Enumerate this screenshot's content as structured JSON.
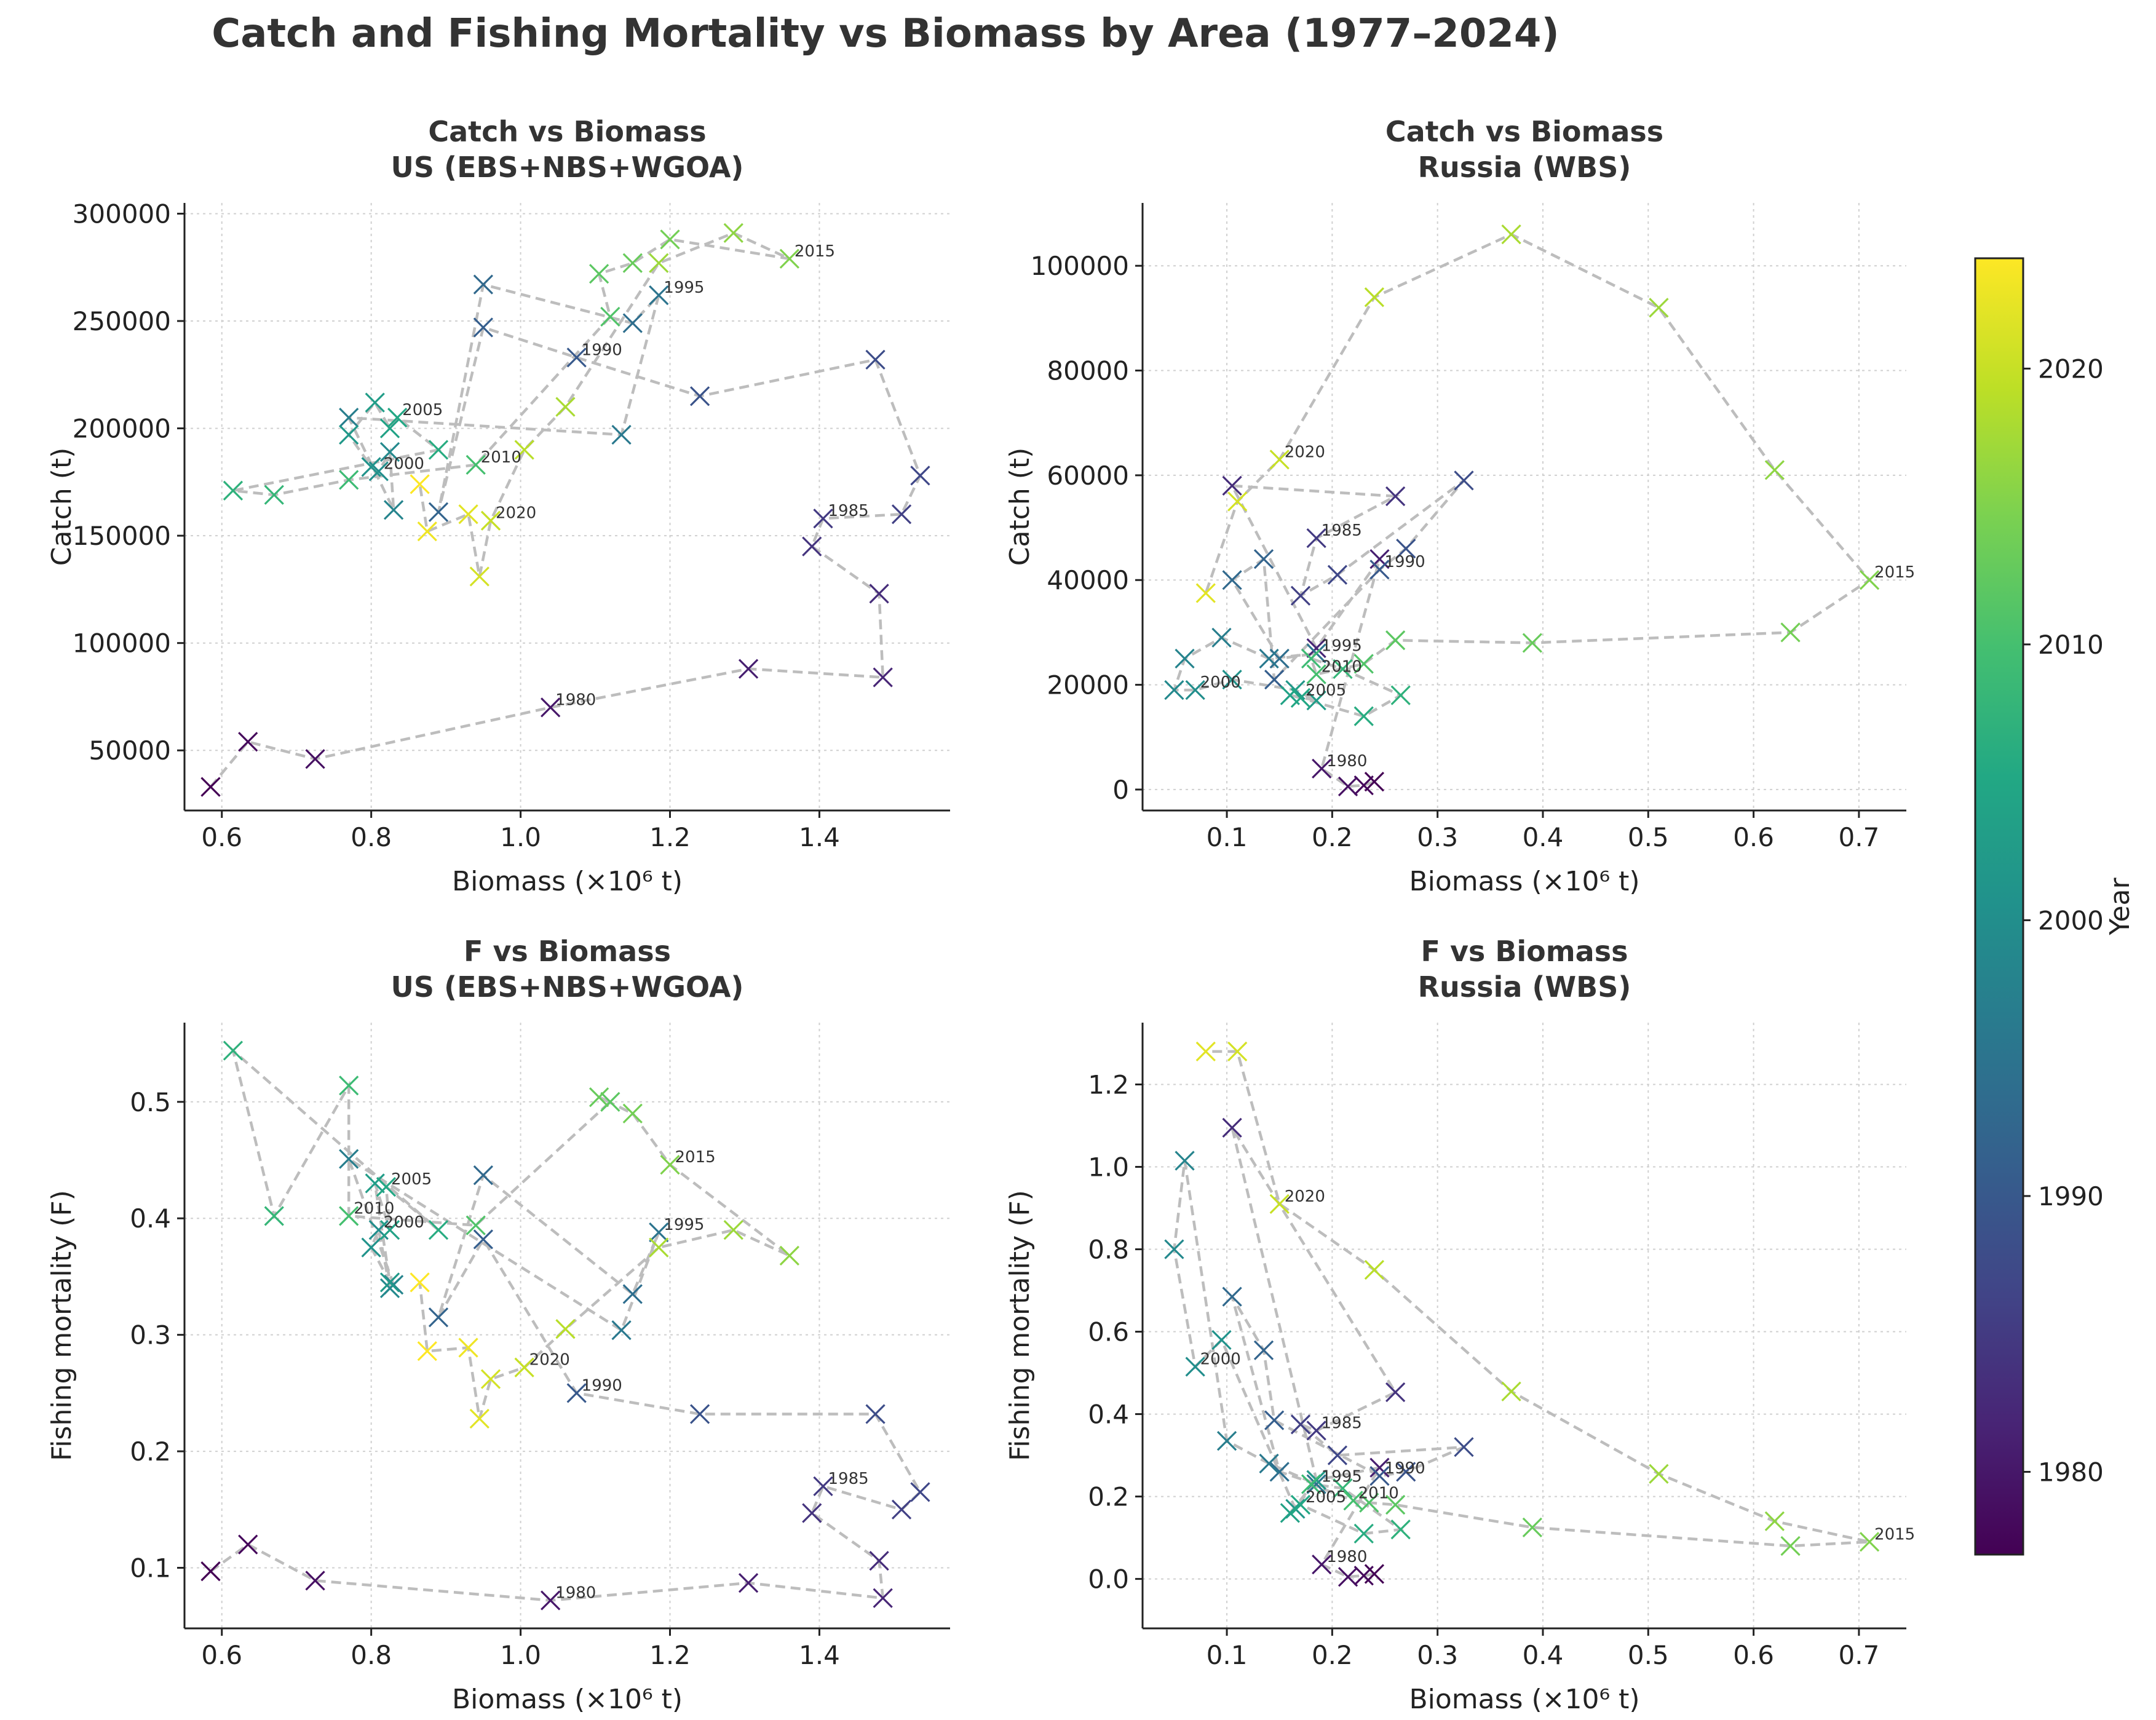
{
  "title": "Catch and Fishing Mortality vs Biomass by Area (1977–2024)",
  "colorbar": {
    "label": "Year",
    "ticks": [
      1980,
      1990,
      2000,
      2010,
      2020
    ],
    "range": [
      1977,
      2024
    ],
    "colormap": "viridis"
  },
  "chart_data": [
    {
      "type": "scatter",
      "id": "us-catch",
      "title": "Catch vs Biomass\nUS (EBS+NBS+WGOA)",
      "xlabel": "Biomass (×10⁶ t)",
      "ylabel": "Catch (t)",
      "xlim": [
        0.55,
        1.575
      ],
      "ylim": [
        22000,
        305000
      ],
      "xticks": [
        0.6,
        0.8,
        1.0,
        1.2,
        1.4
      ],
      "yticks": [
        50000,
        100000,
        150000,
        200000,
        250000,
        300000
      ],
      "marker": "x",
      "connect": "dashed-line",
      "grid": true,
      "annotate_years": [
        1980,
        1985,
        1990,
        1995,
        2000,
        2005,
        2010,
        2015,
        2020
      ],
      "points": [
        {
          "year": 1977,
          "x": 0.585,
          "y": 33000
        },
        {
          "year": 1978,
          "x": 0.635,
          "y": 54000
        },
        {
          "year": 1979,
          "x": 0.725,
          "y": 46000
        },
        {
          "year": 1980,
          "x": 1.04,
          "y": 70000
        },
        {
          "year": 1981,
          "x": 1.305,
          "y": 88000
        },
        {
          "year": 1982,
          "x": 1.485,
          "y": 84000
        },
        {
          "year": 1983,
          "x": 1.48,
          "y": 123000
        },
        {
          "year": 1984,
          "x": 1.39,
          "y": 145000
        },
        {
          "year": 1985,
          "x": 1.405,
          "y": 158000
        },
        {
          "year": 1986,
          "x": 1.51,
          "y": 160000
        },
        {
          "year": 1987,
          "x": 1.535,
          "y": 178000
        },
        {
          "year": 1988,
          "x": 1.475,
          "y": 232000
        },
        {
          "year": 1989,
          "x": 1.24,
          "y": 215000
        },
        {
          "year": 1990,
          "x": 1.075,
          "y": 233000
        },
        {
          "year": 1991,
          "x": 0.95,
          "y": 247000
        },
        {
          "year": 1992,
          "x": 0.89,
          "y": 161000
        },
        {
          "year": 1993,
          "x": 0.95,
          "y": 267000
        },
        {
          "year": 1994,
          "x": 1.15,
          "y": 249000
        },
        {
          "year": 1995,
          "x": 1.185,
          "y": 262000
        },
        {
          "year": 1996,
          "x": 1.135,
          "y": 197000
        },
        {
          "year": 1997,
          "x": 0.77,
          "y": 205000
        },
        {
          "year": 1998,
          "x": 0.83,
          "y": 162000
        },
        {
          "year": 1999,
          "x": 0.825,
          "y": 189000
        },
        {
          "year": 2000,
          "x": 0.81,
          "y": 180000
        },
        {
          "year": 2001,
          "x": 0.8,
          "y": 182000
        },
        {
          "year": 2002,
          "x": 0.77,
          "y": 197000
        },
        {
          "year": 2003,
          "x": 0.805,
          "y": 212000
        },
        {
          "year": 2004,
          "x": 0.825,
          "y": 200000
        },
        {
          "year": 2005,
          "x": 0.835,
          "y": 205000
        },
        {
          "year": 2006,
          "x": 0.89,
          "y": 190000
        },
        {
          "year": 2007,
          "x": 0.615,
          "y": 171000
        },
        {
          "year": 2008,
          "x": 0.67,
          "y": 169000
        },
        {
          "year": 2009,
          "x": 0.77,
          "y": 176000
        },
        {
          "year": 2010,
          "x": 0.94,
          "y": 183000
        },
        {
          "year": 2011,
          "x": 1.12,
          "y": 252000
        },
        {
          "year": 2012,
          "x": 1.105,
          "y": 272000
        },
        {
          "year": 2013,
          "x": 1.15,
          "y": 277000
        },
        {
          "year": 2014,
          "x": 1.2,
          "y": 288000
        },
        {
          "year": 2015,
          "x": 1.36,
          "y": 279000
        },
        {
          "year": 2016,
          "x": 1.285,
          "y": 291000
        },
        {
          "year": 2017,
          "x": 1.185,
          "y": 277000
        },
        {
          "year": 2018,
          "x": 1.06,
          "y": 210000
        },
        {
          "year": 2019,
          "x": 1.005,
          "y": 190000
        },
        {
          "year": 2020,
          "x": 0.96,
          "y": 157000
        },
        {
          "year": 2021,
          "x": 0.945,
          "y": 131000
        },
        {
          "year": 2022,
          "x": 0.93,
          "y": 160000
        },
        {
          "year": 2023,
          "x": 0.875,
          "y": 152000
        },
        {
          "year": 2024,
          "x": 0.865,
          "y": 174000
        }
      ]
    },
    {
      "type": "scatter",
      "id": "ru-catch",
      "title": "Catch vs Biomass\nRussia (WBS)",
      "xlabel": "Biomass (×10⁶ t)",
      "ylabel": "Catch (t)",
      "xlim": [
        0.02,
        0.745
      ],
      "ylim": [
        -4000,
        112000
      ],
      "xticks": [
        0.1,
        0.2,
        0.3,
        0.4,
        0.5,
        0.6,
        0.7
      ],
      "yticks": [
        0,
        20000,
        40000,
        60000,
        80000,
        100000
      ],
      "marker": "x",
      "connect": "dashed-line",
      "grid": true,
      "annotate_years": [
        1980,
        1985,
        1990,
        1995,
        2000,
        2005,
        2010,
        2015,
        2020
      ],
      "points": [
        {
          "year": 1977,
          "x": 0.24,
          "y": 1500
        },
        {
          "year": 1978,
          "x": 0.23,
          "y": 800
        },
        {
          "year": 1979,
          "x": 0.215,
          "y": 600
        },
        {
          "year": 1980,
          "x": 0.19,
          "y": 4000
        },
        {
          "year": 1981,
          "x": 0.245,
          "y": 44000
        },
        {
          "year": 1982,
          "x": 0.185,
          "y": 27000
        },
        {
          "year": 1983,
          "x": 0.105,
          "y": 58000
        },
        {
          "year": 1984,
          "x": 0.26,
          "y": 56000
        },
        {
          "year": 1985,
          "x": 0.185,
          "y": 48000
        },
        {
          "year": 1986,
          "x": 0.17,
          "y": 37000
        },
        {
          "year": 1987,
          "x": 0.205,
          "y": 41000
        },
        {
          "year": 1988,
          "x": 0.325,
          "y": 59000
        },
        {
          "year": 1989,
          "x": 0.27,
          "y": 46000
        },
        {
          "year": 1990,
          "x": 0.245,
          "y": 42000
        },
        {
          "year": 1991,
          "x": 0.145,
          "y": 21000
        },
        {
          "year": 1992,
          "x": 0.135,
          "y": 44000
        },
        {
          "year": 1993,
          "x": 0.105,
          "y": 40000
        },
        {
          "year": 1994,
          "x": 0.15,
          "y": 25000
        },
        {
          "year": 1995,
          "x": 0.185,
          "y": 26000
        },
        {
          "year": 1996,
          "x": 0.14,
          "y": 25000
        },
        {
          "year": 1997,
          "x": 0.095,
          "y": 29000
        },
        {
          "year": 1998,
          "x": 0.06,
          "y": 25000
        },
        {
          "year": 1999,
          "x": 0.05,
          "y": 19000
        },
        {
          "year": 2000,
          "x": 0.07,
          "y": 19000
        },
        {
          "year": 2001,
          "x": 0.105,
          "y": 21000
        },
        {
          "year": 2002,
          "x": 0.165,
          "y": 19000
        },
        {
          "year": 2003,
          "x": 0.185,
          "y": 17000
        },
        {
          "year": 2004,
          "x": 0.16,
          "y": 18000
        },
        {
          "year": 2005,
          "x": 0.17,
          "y": 17500
        },
        {
          "year": 2006,
          "x": 0.23,
          "y": 14000
        },
        {
          "year": 2007,
          "x": 0.265,
          "y": 18000
        },
        {
          "year": 2008,
          "x": 0.21,
          "y": 23000
        },
        {
          "year": 2009,
          "x": 0.18,
          "y": 25000
        },
        {
          "year": 2010,
          "x": 0.185,
          "y": 22000
        },
        {
          "year": 2011,
          "x": 0.23,
          "y": 24000
        },
        {
          "year": 2012,
          "x": 0.26,
          "y": 28500
        },
        {
          "year": 2013,
          "x": 0.39,
          "y": 28000
        },
        {
          "year": 2014,
          "x": 0.635,
          "y": 30000
        },
        {
          "year": 2015,
          "x": 0.71,
          "y": 40000
        },
        {
          "year": 2016,
          "x": 0.62,
          "y": 61000
        },
        {
          "year": 2017,
          "x": 0.51,
          "y": 92000
        },
        {
          "year": 2018,
          "x": 0.37,
          "y": 106000
        },
        {
          "year": 2019,
          "x": 0.24,
          "y": 94000
        },
        {
          "year": 2020,
          "x": 0.15,
          "y": 63000
        },
        {
          "year": 2021,
          "x": 0.11,
          "y": 55000
        },
        {
          "year": 2022,
          "x": 0.08,
          "y": 37500
        }
      ]
    },
    {
      "type": "scatter",
      "id": "us-f",
      "title": "F vs Biomass\nUS (EBS+NBS+WGOA)",
      "xlabel": "Biomass (×10⁶ t)",
      "ylabel": "Fishing mortality (F)",
      "xlim": [
        0.55,
        1.575
      ],
      "ylim": [
        0.048,
        0.568
      ],
      "xticks": [
        0.6,
        0.8,
        1.0,
        1.2,
        1.4
      ],
      "yticks": [
        0.1,
        0.2,
        0.3,
        0.4,
        0.5
      ],
      "marker": "x",
      "connect": "dashed-line",
      "grid": true,
      "annotate_years": [
        1980,
        1985,
        1990,
        1995,
        2000,
        2005,
        2010,
        2015,
        2020
      ],
      "points": [
        {
          "year": 1977,
          "x": 0.585,
          "y": 0.097
        },
        {
          "year": 1978,
          "x": 0.635,
          "y": 0.12
        },
        {
          "year": 1979,
          "x": 0.725,
          "y": 0.089
        },
        {
          "year": 1980,
          "x": 1.04,
          "y": 0.072
        },
        {
          "year": 1981,
          "x": 1.305,
          "y": 0.087
        },
        {
          "year": 1982,
          "x": 1.485,
          "y": 0.074
        },
        {
          "year": 1983,
          "x": 1.48,
          "y": 0.106
        },
        {
          "year": 1984,
          "x": 1.39,
          "y": 0.147
        },
        {
          "year": 1985,
          "x": 1.405,
          "y": 0.17
        },
        {
          "year": 1986,
          "x": 1.51,
          "y": 0.15
        },
        {
          "year": 1987,
          "x": 1.535,
          "y": 0.165
        },
        {
          "year": 1988,
          "x": 1.475,
          "y": 0.232
        },
        {
          "year": 1989,
          "x": 1.24,
          "y": 0.232
        },
        {
          "year": 1990,
          "x": 1.075,
          "y": 0.25
        },
        {
          "year": 1991,
          "x": 0.95,
          "y": 0.382
        },
        {
          "year": 1992,
          "x": 0.89,
          "y": 0.315
        },
        {
          "year": 1993,
          "x": 0.95,
          "y": 0.437
        },
        {
          "year": 1994,
          "x": 1.15,
          "y": 0.335
        },
        {
          "year": 1995,
          "x": 1.185,
          "y": 0.388
        },
        {
          "year": 1996,
          "x": 1.135,
          "y": 0.304
        },
        {
          "year": 1997,
          "x": 0.77,
          "y": 0.451
        },
        {
          "year": 1998,
          "x": 0.83,
          "y": 0.343
        },
        {
          "year": 1999,
          "x": 0.825,
          "y": 0.34
        },
        {
          "year": 2000,
          "x": 0.81,
          "y": 0.39
        },
        {
          "year": 2001,
          "x": 0.8,
          "y": 0.375
        },
        {
          "year": 2002,
          "x": 0.825,
          "y": 0.345
        },
        {
          "year": 2003,
          "x": 0.805,
          "y": 0.43
        },
        {
          "year": 2004,
          "x": 0.825,
          "y": 0.39
        },
        {
          "year": 2005,
          "x": 0.82,
          "y": 0.427
        },
        {
          "year": 2006,
          "x": 0.89,
          "y": 0.39
        },
        {
          "year": 2007,
          "x": 0.615,
          "y": 0.544
        },
        {
          "year": 2008,
          "x": 0.67,
          "y": 0.402
        },
        {
          "year": 2009,
          "x": 0.77,
          "y": 0.514
        },
        {
          "year": 2010,
          "x": 0.77,
          "y": 0.402
        },
        {
          "year": 2011,
          "x": 0.94,
          "y": 0.394
        },
        {
          "year": 2012,
          "x": 1.12,
          "y": 0.5
        },
        {
          "year": 2013,
          "x": 1.105,
          "y": 0.504
        },
        {
          "year": 2014,
          "x": 1.15,
          "y": 0.49
        },
        {
          "year": 2015,
          "x": 1.2,
          "y": 0.446
        },
        {
          "year": 2016,
          "x": 1.36,
          "y": 0.368
        },
        {
          "year": 2017,
          "x": 1.285,
          "y": 0.39
        },
        {
          "year": 2018,
          "x": 1.185,
          "y": 0.375
        },
        {
          "year": 2019,
          "x": 1.06,
          "y": 0.305
        },
        {
          "year": 2020,
          "x": 1.005,
          "y": 0.272
        },
        {
          "year": 2021,
          "x": 0.96,
          "y": 0.262
        },
        {
          "year": 2022,
          "x": 0.945,
          "y": 0.228
        },
        {
          "year": 2023,
          "x": 0.93,
          "y": 0.289
        },
        {
          "year": 2024,
          "x": 0.875,
          "y": 0.286
        },
        {
          "year": 2024,
          "x": 0.865,
          "y": 0.345
        }
      ]
    },
    {
      "type": "scatter",
      "id": "ru-f",
      "title": "F vs Biomass\nRussia (WBS)",
      "xlabel": "Biomass (×10⁶ t)",
      "ylabel": "Fishing mortality (F)",
      "xlim": [
        0.02,
        0.745
      ],
      "ylim": [
        -0.12,
        1.35
      ],
      "xticks": [
        0.1,
        0.2,
        0.3,
        0.4,
        0.5,
        0.6,
        0.7
      ],
      "yticks": [
        0.0,
        0.2,
        0.4,
        0.6,
        0.8,
        1.0,
        1.2
      ],
      "marker": "x",
      "connect": "dashed-line",
      "grid": true,
      "annotate_years": [
        1980,
        1985,
        1990,
        1995,
        2000,
        2005,
        2010,
        2015,
        2020
      ],
      "points": [
        {
          "year": 1977,
          "x": 0.24,
          "y": 0.012
        },
        {
          "year": 1978,
          "x": 0.23,
          "y": 0.008
        },
        {
          "year": 1979,
          "x": 0.215,
          "y": 0.005
        },
        {
          "year": 1980,
          "x": 0.19,
          "y": 0.035
        },
        {
          "year": 1981,
          "x": 0.245,
          "y": 0.27
        },
        {
          "year": 1982,
          "x": 0.185,
          "y": 0.24
        },
        {
          "year": 1983,
          "x": 0.105,
          "y": 1.095
        },
        {
          "year": 1984,
          "x": 0.26,
          "y": 0.453
        },
        {
          "year": 1985,
          "x": 0.185,
          "y": 0.36
        },
        {
          "year": 1986,
          "x": 0.17,
          "y": 0.375
        },
        {
          "year": 1987,
          "x": 0.205,
          "y": 0.3
        },
        {
          "year": 1988,
          "x": 0.325,
          "y": 0.32
        },
        {
          "year": 1989,
          "x": 0.27,
          "y": 0.26
        },
        {
          "year": 1990,
          "x": 0.245,
          "y": 0.25
        },
        {
          "year": 1991,
          "x": 0.145,
          "y": 0.385
        },
        {
          "year": 1992,
          "x": 0.135,
          "y": 0.555
        },
        {
          "year": 1993,
          "x": 0.105,
          "y": 0.685
        },
        {
          "year": 1994,
          "x": 0.15,
          "y": 0.26
        },
        {
          "year": 1995,
          "x": 0.185,
          "y": 0.23
        },
        {
          "year": 1996,
          "x": 0.14,
          "y": 0.28
        },
        {
          "year": 1997,
          "x": 0.1,
          "y": 0.335
        },
        {
          "year": 1998,
          "x": 0.06,
          "y": 1.015
        },
        {
          "year": 1999,
          "x": 0.05,
          "y": 0.8
        },
        {
          "year": 2000,
          "x": 0.07,
          "y": 0.515
        },
        {
          "year": 2001,
          "x": 0.095,
          "y": 0.58
        },
        {
          "year": 2002,
          "x": 0.165,
          "y": 0.17
        },
        {
          "year": 2003,
          "x": 0.185,
          "y": 0.24
        },
        {
          "year": 2004,
          "x": 0.16,
          "y": 0.16
        },
        {
          "year": 2005,
          "x": 0.17,
          "y": 0.18
        },
        {
          "year": 2006,
          "x": 0.23,
          "y": 0.11
        },
        {
          "year": 2007,
          "x": 0.265,
          "y": 0.12
        },
        {
          "year": 2008,
          "x": 0.21,
          "y": 0.22
        },
        {
          "year": 2009,
          "x": 0.18,
          "y": 0.23
        },
        {
          "year": 2010,
          "x": 0.22,
          "y": 0.19
        },
        {
          "year": 2011,
          "x": 0.235,
          "y": 0.185
        },
        {
          "year": 2012,
          "x": 0.26,
          "y": 0.18
        },
        {
          "year": 2013,
          "x": 0.39,
          "y": 0.125
        },
        {
          "year": 2014,
          "x": 0.635,
          "y": 0.08
        },
        {
          "year": 2015,
          "x": 0.71,
          "y": 0.09
        },
        {
          "year": 2016,
          "x": 0.62,
          "y": 0.14
        },
        {
          "year": 2017,
          "x": 0.51,
          "y": 0.255
        },
        {
          "year": 2018,
          "x": 0.37,
          "y": 0.455
        },
        {
          "year": 2019,
          "x": 0.24,
          "y": 0.75
        },
        {
          "year": 2020,
          "x": 0.15,
          "y": 0.91
        },
        {
          "year": 2021,
          "x": 0.11,
          "y": 1.28
        },
        {
          "year": 2022,
          "x": 0.08,
          "y": 1.28
        }
      ]
    }
  ]
}
